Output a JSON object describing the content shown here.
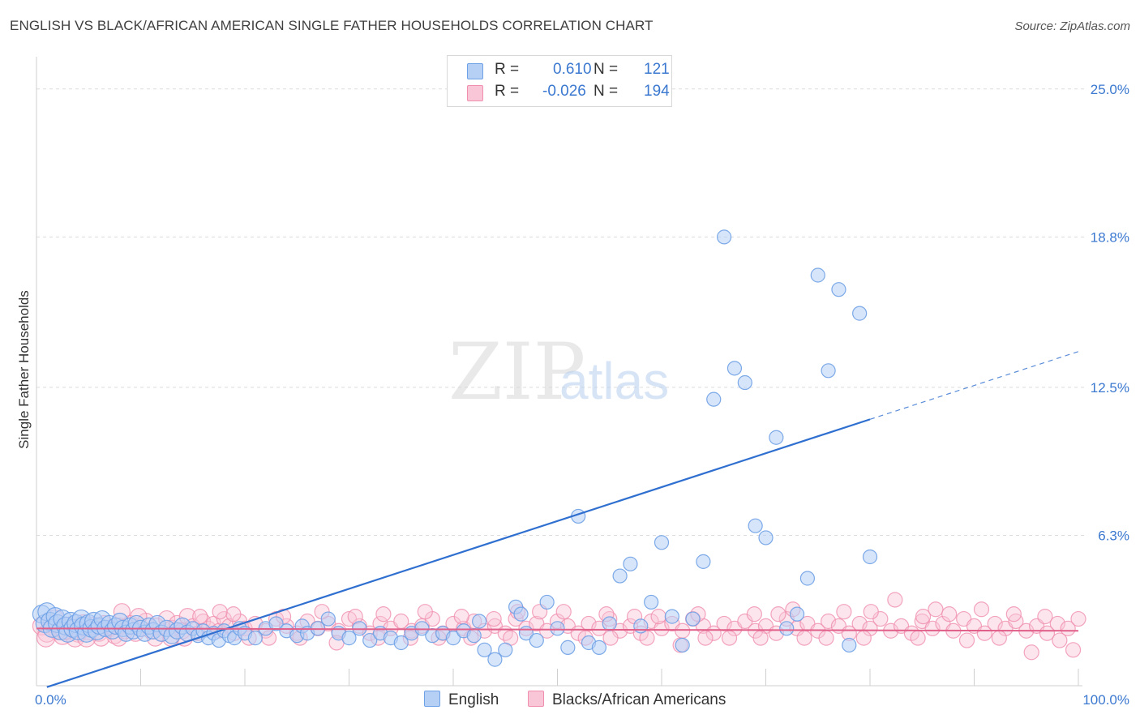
{
  "title": "ENGLISH VS BLACK/AFRICAN AMERICAN SINGLE FATHER HOUSEHOLDS CORRELATION CHART",
  "source": "Source: ZipAtlas.com",
  "watermark": {
    "zip": "ZIP",
    "atlas": "atlas"
  },
  "legend": {
    "english": {
      "r_label": "R =",
      "r_value": "0.610",
      "n_label": "N =",
      "n_value": "121"
    },
    "black": {
      "r_label": "R =",
      "r_value": "-0.026",
      "n_label": "N =",
      "n_value": "194"
    }
  },
  "bottom_legend": {
    "english": "English",
    "black": "Blacks/African Americans"
  },
  "colors": {
    "english": "#6fa1e6",
    "english_fill": "#b6d0f5",
    "black": "#f08fae",
    "black_fill": "#f8c6d6",
    "trend_blue": "#2f6fd0",
    "trend_pink": "#e0608a",
    "tick_blue": "#3b78d0",
    "grid": "#dcdcdc"
  },
  "chart_data": {
    "type": "scatter",
    "title": "ENGLISH VS BLACK/AFRICAN AMERICAN SINGLE FATHER HOUSEHOLDS CORRELATION CHART",
    "xlabel": "",
    "ylabel": "Single Father Households",
    "xlim": [
      0,
      100
    ],
    "ylim": [
      0,
      26.25
    ],
    "x_tick_labels": [
      "0.0%",
      "100.0%"
    ],
    "y_ticks": [
      6.3,
      12.5,
      18.8,
      25.0
    ],
    "y_tick_labels": [
      "6.3%",
      "12.5%",
      "18.8%",
      "25.0%"
    ],
    "grid": true,
    "series": [
      {
        "name": "English",
        "r": 0.61,
        "n": 121,
        "trend": {
          "x0": 0,
          "y0": -0.2,
          "x1": 100,
          "y1": 14.0,
          "solid_until": 80
        },
        "points": [
          [
            0.5,
            3.0
          ],
          [
            0.8,
            2.6
          ],
          [
            1.0,
            3.1
          ],
          [
            1.3,
            2.7
          ],
          [
            1.5,
            2.4
          ],
          [
            1.8,
            2.9
          ],
          [
            2.0,
            2.6
          ],
          [
            2.3,
            2.3
          ],
          [
            2.5,
            2.8
          ],
          [
            2.8,
            2.5
          ],
          [
            3.0,
            2.2
          ],
          [
            3.3,
            2.7
          ],
          [
            3.5,
            2.4
          ],
          [
            3.8,
            2.6
          ],
          [
            4.0,
            2.3
          ],
          [
            4.3,
            2.8
          ],
          [
            4.5,
            2.5
          ],
          [
            4.8,
            2.2
          ],
          [
            5.0,
            2.6
          ],
          [
            5.3,
            2.4
          ],
          [
            5.5,
            2.7
          ],
          [
            5.8,
            2.3
          ],
          [
            6.0,
            2.5
          ],
          [
            6.3,
            2.8
          ],
          [
            6.6,
            2.4
          ],
          [
            7.0,
            2.6
          ],
          [
            7.3,
            2.3
          ],
          [
            7.6,
            2.5
          ],
          [
            8.0,
            2.7
          ],
          [
            8.3,
            2.4
          ],
          [
            8.6,
            2.2
          ],
          [
            9.0,
            2.5
          ],
          [
            9.3,
            2.3
          ],
          [
            9.6,
            2.6
          ],
          [
            10.0,
            2.4
          ],
          [
            10.4,
            2.2
          ],
          [
            10.8,
            2.5
          ],
          [
            11.2,
            2.3
          ],
          [
            11.6,
            2.6
          ],
          [
            12.0,
            2.2
          ],
          [
            12.5,
            2.4
          ],
          [
            13.0,
            2.1
          ],
          [
            13.5,
            2.3
          ],
          [
            14.0,
            2.5
          ],
          [
            14.5,
            2.2
          ],
          [
            15.0,
            2.4
          ],
          [
            15.5,
            2.1
          ],
          [
            16.0,
            2.3
          ],
          [
            16.5,
            2.0
          ],
          [
            17.0,
            2.2
          ],
          [
            17.5,
            1.9
          ],
          [
            18.0,
            2.3
          ],
          [
            18.5,
            2.1
          ],
          [
            19.0,
            2.0
          ],
          [
            19.5,
            2.4
          ],
          [
            20.0,
            2.2
          ],
          [
            21.0,
            2.0
          ],
          [
            22.0,
            2.4
          ],
          [
            23.0,
            2.6
          ],
          [
            24.0,
            2.3
          ],
          [
            25.0,
            2.1
          ],
          [
            25.5,
            2.5
          ],
          [
            26.0,
            2.2
          ],
          [
            27.0,
            2.4
          ],
          [
            28.0,
            2.8
          ],
          [
            29.0,
            2.2
          ],
          [
            30.0,
            2.0
          ],
          [
            31.0,
            2.4
          ],
          [
            32.0,
            1.9
          ],
          [
            33.0,
            2.2
          ],
          [
            34.0,
            2.0
          ],
          [
            35.0,
            1.8
          ],
          [
            36.0,
            2.2
          ],
          [
            37.0,
            2.4
          ],
          [
            38.0,
            2.1
          ],
          [
            39.0,
            2.2
          ],
          [
            40.0,
            2.0
          ],
          [
            41.0,
            2.3
          ],
          [
            42.0,
            2.1
          ],
          [
            42.5,
            2.7
          ],
          [
            43.0,
            1.5
          ],
          [
            44.0,
            1.1
          ],
          [
            45.0,
            1.5
          ],
          [
            46.0,
            3.3
          ],
          [
            46.5,
            3.0
          ],
          [
            47.0,
            2.2
          ],
          [
            48.0,
            1.9
          ],
          [
            49.0,
            3.5
          ],
          [
            50.0,
            2.4
          ],
          [
            51.0,
            1.6
          ],
          [
            52.0,
            7.1
          ],
          [
            53.0,
            1.8
          ],
          [
            54.0,
            1.6
          ],
          [
            55.0,
            2.6
          ],
          [
            56.0,
            4.6
          ],
          [
            57.0,
            5.1
          ],
          [
            58.0,
            2.5
          ],
          [
            59.0,
            3.5
          ],
          [
            60.0,
            6.0
          ],
          [
            61.0,
            2.9
          ],
          [
            62.0,
            1.7
          ],
          [
            63.0,
            2.8
          ],
          [
            64.0,
            5.2
          ],
          [
            65.0,
            12.0
          ],
          [
            66.0,
            18.8
          ],
          [
            67.0,
            13.3
          ],
          [
            68.0,
            12.7
          ],
          [
            69.0,
            6.7
          ],
          [
            70.0,
            6.2
          ],
          [
            71.0,
            10.4
          ],
          [
            72.0,
            2.4
          ],
          [
            73.0,
            3.0
          ],
          [
            74.0,
            4.5
          ],
          [
            75.0,
            17.2
          ],
          [
            76.0,
            13.2
          ],
          [
            77.0,
            16.6
          ],
          [
            78.0,
            1.7
          ],
          [
            79.0,
            15.6
          ],
          [
            80.0,
            5.4
          ]
        ]
      },
      {
        "name": "Blacks/African Americans",
        "r": -0.026,
        "n": 194,
        "trend": {
          "x0": 0,
          "y0": 2.4,
          "x1": 100,
          "y1": 2.3
        },
        "points": [
          [
            0.5,
            2.5
          ],
          [
            1.0,
            2.2
          ],
          [
            1.5,
            2.6
          ],
          [
            2.0,
            2.3
          ],
          [
            2.5,
            2.1
          ],
          [
            3.0,
            2.5
          ],
          [
            3.5,
            2.4
          ],
          [
            4.0,
            2.2
          ],
          [
            4.5,
            2.6
          ],
          [
            5.0,
            2.3
          ],
          [
            5.5,
            2.5
          ],
          [
            6.0,
            2.2
          ],
          [
            6.5,
            2.6
          ],
          [
            7.0,
            2.4
          ],
          [
            7.5,
            2.1
          ],
          [
            8.0,
            2.5
          ],
          [
            8.5,
            2.3
          ],
          [
            9.0,
            2.6
          ],
          [
            9.5,
            2.2
          ],
          [
            10.0,
            2.4
          ],
          [
            10.5,
            2.7
          ],
          [
            11.0,
            2.3
          ],
          [
            11.5,
            2.5
          ],
          [
            12.0,
            2.2
          ],
          [
            12.5,
            2.8
          ],
          [
            13.0,
            2.4
          ],
          [
            13.5,
            2.6
          ],
          [
            14.0,
            2.3
          ],
          [
            14.5,
            2.9
          ],
          [
            15.0,
            2.5
          ],
          [
            15.5,
            2.2
          ],
          [
            16.0,
            2.7
          ],
          [
            16.5,
            2.4
          ],
          [
            17.0,
            2.6
          ],
          [
            17.5,
            2.3
          ],
          [
            18.0,
            2.8
          ],
          [
            18.5,
            2.5
          ],
          [
            19.0,
            2.2
          ],
          [
            19.5,
            2.7
          ],
          [
            20.0,
            2.4
          ],
          [
            21.0,
            2.6
          ],
          [
            22.0,
            2.3
          ],
          [
            23.0,
            2.8
          ],
          [
            24.0,
            2.5
          ],
          [
            25.0,
            2.2
          ],
          [
            26.0,
            2.7
          ],
          [
            27.0,
            2.4
          ],
          [
            28.0,
            2.6
          ],
          [
            29.0,
            2.3
          ],
          [
            30.0,
            2.8
          ],
          [
            31.0,
            2.5
          ],
          [
            32.0,
            2.2
          ],
          [
            33.0,
            2.6
          ],
          [
            34.0,
            2.4
          ],
          [
            35.0,
            2.7
          ],
          [
            36.0,
            2.3
          ],
          [
            37.0,
            2.5
          ],
          [
            38.0,
            2.8
          ],
          [
            39.0,
            2.2
          ],
          [
            40.0,
            2.6
          ],
          [
            41.0,
            2.4
          ],
          [
            42.0,
            2.7
          ],
          [
            43.0,
            2.3
          ],
          [
            44.0,
            2.5
          ],
          [
            45.0,
            2.2
          ],
          [
            46.0,
            2.8
          ],
          [
            47.0,
            2.4
          ],
          [
            48.0,
            2.6
          ],
          [
            49.0,
            2.3
          ],
          [
            50.0,
            2.7
          ],
          [
            51.0,
            2.5
          ],
          [
            52.0,
            2.2
          ],
          [
            53.0,
            2.6
          ],
          [
            54.0,
            2.4
          ],
          [
            55.0,
            2.8
          ],
          [
            56.0,
            2.3
          ],
          [
            57.0,
            2.5
          ],
          [
            58.0,
            2.2
          ],
          [
            59.0,
            2.7
          ],
          [
            60.0,
            2.4
          ],
          [
            61.0,
            2.6
          ],
          [
            62.0,
            2.3
          ],
          [
            63.0,
            2.8
          ],
          [
            64.0,
            2.5
          ],
          [
            65.0,
            2.2
          ],
          [
            66.0,
            2.6
          ],
          [
            67.0,
            2.4
          ],
          [
            68.0,
            2.7
          ],
          [
            69.0,
            2.3
          ],
          [
            70.0,
            2.5
          ],
          [
            71.0,
            2.2
          ],
          [
            72.0,
            2.8
          ],
          [
            73.0,
            2.4
          ],
          [
            74.0,
            2.6
          ],
          [
            75.0,
            2.3
          ],
          [
            76.0,
            2.7
          ],
          [
            77.0,
            2.5
          ],
          [
            78.0,
            2.2
          ],
          [
            79.0,
            2.6
          ],
          [
            80.0,
            2.4
          ],
          [
            81.0,
            2.8
          ],
          [
            82.0,
            2.3
          ],
          [
            83.0,
            2.5
          ],
          [
            84.0,
            2.2
          ],
          [
            85.0,
            2.7
          ],
          [
            86.0,
            2.4
          ],
          [
            87.0,
            2.6
          ],
          [
            88.0,
            2.3
          ],
          [
            89.0,
            2.8
          ],
          [
            90.0,
            2.5
          ],
          [
            91.0,
            2.2
          ],
          [
            92.0,
            2.6
          ],
          [
            93.0,
            2.4
          ],
          [
            94.0,
            2.7
          ],
          [
            95.0,
            2.3
          ],
          [
            96.0,
            2.5
          ],
          [
            97.0,
            2.2
          ],
          [
            98.0,
            2.6
          ],
          [
            99.0,
            2.4
          ],
          [
            100.0,
            2.8
          ],
          [
            6.2,
            2.0
          ],
          [
            9.8,
            2.9
          ],
          [
            14.2,
            2.0
          ],
          [
            18.9,
            3.0
          ],
          [
            23.7,
            2.9
          ],
          [
            28.8,
            1.8
          ],
          [
            33.3,
            3.0
          ],
          [
            38.6,
            2.0
          ],
          [
            43.9,
            2.8
          ],
          [
            48.3,
            3.1
          ],
          [
            52.7,
            2.0
          ],
          [
            57.4,
            2.9
          ],
          [
            61.8,
            1.7
          ],
          [
            66.5,
            2.0
          ],
          [
            71.2,
            3.0
          ],
          [
            75.8,
            2.0
          ],
          [
            80.1,
            3.1
          ],
          [
            84.6,
            2.0
          ],
          [
            89.3,
            1.9
          ],
          [
            93.8,
            3.0
          ],
          [
            98.2,
            1.9
          ],
          [
            99.5,
            1.5
          ],
          [
            95.5,
            1.4
          ],
          [
            90.7,
            3.2
          ],
          [
            86.3,
            3.2
          ],
          [
            82.4,
            3.6
          ],
          [
            77.5,
            3.1
          ],
          [
            72.6,
            3.2
          ],
          [
            68.9,
            3.0
          ],
          [
            64.2,
            2.0
          ],
          [
            59.7,
            2.9
          ],
          [
            55.1,
            2.0
          ],
          [
            50.6,
            3.1
          ],
          [
            46.2,
            3.1
          ],
          [
            41.7,
            2.0
          ],
          [
            37.3,
            3.1
          ],
          [
            32.8,
            2.0
          ],
          [
            27.4,
            3.1
          ],
          [
            22.3,
            2.0
          ],
          [
            17.6,
            3.1
          ],
          [
            12.9,
            2.0
          ],
          [
            8.2,
            3.1
          ],
          [
            3.7,
            2.0
          ],
          [
            1.8,
            2.8
          ],
          [
            0.9,
            2.0
          ],
          [
            2.7,
            2.3
          ],
          [
            4.8,
            2.0
          ],
          [
            7.9,
            2.0
          ],
          [
            11.4,
            2.0
          ],
          [
            15.7,
            2.9
          ],
          [
            20.4,
            2.0
          ],
          [
            25.3,
            2.0
          ],
          [
            30.6,
            2.9
          ],
          [
            35.9,
            2.0
          ],
          [
            40.8,
            2.9
          ],
          [
            45.5,
            2.0
          ],
          [
            54.7,
            3.0
          ],
          [
            63.5,
            3.0
          ],
          [
            73.7,
            2.0
          ],
          [
            79.4,
            2.0
          ],
          [
            87.6,
            3.0
          ],
          [
            92.4,
            2.0
          ],
          [
            96.8,
            2.9
          ],
          [
            58.6,
            2.0
          ],
          [
            69.5,
            2.0
          ],
          [
            85.1,
            2.9
          ]
        ]
      }
    ]
  }
}
